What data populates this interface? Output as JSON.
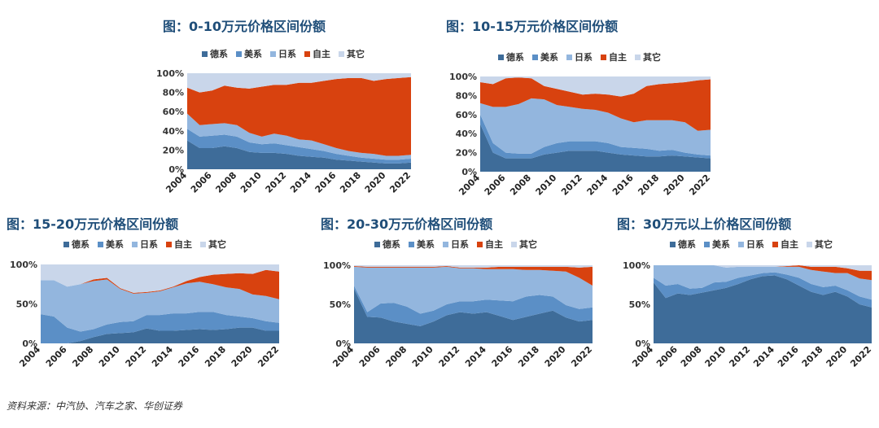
{
  "colors": {
    "德系": "#3e6c99",
    "美系": "#5b8fc6",
    "日系": "#93b6de",
    "自主": "#d8420f",
    "其它": "#c9d6ea",
    "title": "#1f4e79"
  },
  "source_text": "资料来源：中汽协、汽车之家、华创证券",
  "charts": [
    {
      "title": "图：0-10万元价格区间份额",
      "chart_data": {
        "type": "area",
        "x": [
          2004,
          2005,
          2006,
          2007,
          2008,
          2009,
          2010,
          2011,
          2012,
          2013,
          2014,
          2015,
          2016,
          2017,
          2018,
          2019,
          2020,
          2021,
          2022
        ],
        "x_tick_labels": [
          "2004",
          "2006",
          "2008",
          "2010",
          "2012",
          "2014",
          "2016",
          "2018",
          "2020",
          "2022"
        ],
        "y_tick_labels": [
          "0%",
          "20%",
          "40%",
          "60%",
          "80%",
          "100%"
        ],
        "ylim": [
          0,
          100
        ],
        "series": [
          {
            "name": "德系",
            "values": [
              30,
              22,
              22,
              24,
              22,
              18,
              17,
              17,
              16,
              14,
              13,
              12,
              10,
              9,
              8,
              7,
              6,
              6,
              7
            ]
          },
          {
            "name": "美系",
            "values": [
              12,
              12,
              13,
              12,
              12,
              10,
              9,
              10,
              9,
              9,
              8,
              7,
              6,
              5,
              4,
              4,
              4,
              4,
              4
            ]
          },
          {
            "name": "日系",
            "values": [
              16,
              12,
              12,
              12,
              12,
              10,
              8,
              10,
              10,
              8,
              9,
              7,
              6,
              5,
              5,
              5,
              4,
              4,
              4
            ]
          },
          {
            "name": "自主",
            "values": [
              27,
              34,
              35,
              39,
              39,
              46,
              52,
              51,
              53,
              59,
              60,
              66,
              72,
              76,
              78,
              76,
              80,
              81,
              81
            ]
          },
          {
            "name": "其它",
            "values": [
              15,
              20,
              18,
              13,
              15,
              16,
              14,
              12,
              12,
              10,
              10,
              8,
              6,
              5,
              5,
              8,
              6,
              5,
              4
            ]
          }
        ]
      }
    },
    {
      "title": "图：10-15万元价格区间份额",
      "chart_data": {
        "type": "area",
        "x": [
          2004,
          2005,
          2006,
          2007,
          2008,
          2009,
          2010,
          2011,
          2012,
          2013,
          2014,
          2015,
          2016,
          2017,
          2018,
          2019,
          2020,
          2021,
          2022
        ],
        "x_tick_labels": [
          "2004",
          "2006",
          "2008",
          "2010",
          "2012",
          "2014",
          "2016",
          "2018",
          "2020",
          "2022"
        ],
        "y_tick_labels": [
          "0%",
          "20%",
          "40%",
          "60%",
          "80%",
          "100%"
        ],
        "ylim": [
          0,
          100
        ],
        "series": [
          {
            "name": "德系",
            "values": [
              50,
              20,
              14,
              14,
              14,
              18,
              20,
              22,
              22,
              22,
              20,
              18,
              17,
              16,
              16,
              17,
              16,
              15,
              14
            ]
          },
          {
            "name": "美系",
            "values": [
              10,
              10,
              6,
              5,
              5,
              8,
              10,
              10,
              10,
              10,
              10,
              8,
              8,
              8,
              6,
              6,
              4,
              3,
              3
            ]
          },
          {
            "name": "日系",
            "values": [
              12,
              38,
              48,
              52,
              58,
              50,
              40,
              36,
              34,
              33,
              32,
              30,
              27,
              30,
              32,
              31,
              32,
              25,
              27
            ]
          },
          {
            "name": "自主",
            "values": [
              22,
              24,
              30,
              28,
              21,
              14,
              17,
              16,
              15,
              17,
              19,
              23,
              30,
              36,
              38,
              39,
              42,
              53,
              53
            ]
          },
          {
            "name": "其它",
            "values": [
              6,
              8,
              2,
              1,
              2,
              10,
              13,
              16,
              19,
              18,
              19,
              21,
              18,
              10,
              8,
              7,
              6,
              4,
              3
            ]
          }
        ]
      }
    },
    {
      "title": "图：15-20万元价格区间份额",
      "chart_data": {
        "type": "area",
        "x": [
          2004,
          2005,
          2006,
          2007,
          2008,
          2009,
          2010,
          2011,
          2012,
          2013,
          2014,
          2015,
          2016,
          2017,
          2018,
          2019,
          2020,
          2021,
          2022
        ],
        "x_tick_labels": [
          "2004",
          "2006",
          "2008",
          "2010",
          "2012",
          "2014",
          "2016",
          "2018",
          "2020",
          "2022"
        ],
        "y_tick_labels": [
          "0%",
          "50%",
          "100%"
        ],
        "ylim": [
          0,
          100
        ],
        "series": [
          {
            "name": "德系",
            "values": [
              0,
              0,
              0,
              3,
              8,
              12,
              13,
              14,
              19,
              16,
              16,
              17,
              18,
              17,
              18,
              20,
              20,
              16,
              16
            ]
          },
          {
            "name": "美系",
            "values": [
              37,
              34,
              20,
              12,
              10,
              12,
              14,
              14,
              17,
              20,
              22,
              21,
              22,
              23,
              18,
              14,
              12,
              12,
              10
            ]
          },
          {
            "name": "日系",
            "values": [
              43,
              46,
              52,
              60,
              61,
              57,
              42,
              35,
              28,
              30,
              33,
              38,
              38,
              35,
              35,
              35,
              30,
              32,
              30
            ]
          },
          {
            "name": "自主",
            "values": [
              0,
              0,
              0,
              0,
              2,
              2,
              1,
              1,
              1,
              1,
              1,
              3,
              6,
              12,
              17,
              20,
              26,
              33,
              35
            ]
          },
          {
            "name": "其它",
            "values": [
              20,
              20,
              28,
              25,
              19,
              17,
              30,
              36,
              35,
              33,
              28,
              21,
              16,
              13,
              12,
              11,
              12,
              7,
              9
            ]
          }
        ]
      }
    },
    {
      "title": "图：20-30万元价格区间份额",
      "chart_data": {
        "type": "area",
        "x": [
          2004,
          2005,
          2006,
          2007,
          2008,
          2009,
          2010,
          2011,
          2012,
          2013,
          2014,
          2015,
          2016,
          2017,
          2018,
          2019,
          2020,
          2021,
          2022
        ],
        "x_tick_labels": [
          "2004",
          "2006",
          "2008",
          "2010",
          "2012",
          "2014",
          "2016",
          "2018",
          "2020",
          "2022"
        ],
        "y_tick_labels": [
          "0%",
          "50%",
          "100%"
        ],
        "ylim": [
          0,
          100
        ],
        "series": [
          {
            "name": "德系",
            "values": [
              70,
              34,
              33,
              28,
              25,
              22,
              28,
              36,
              40,
              38,
              40,
              35,
              30,
              34,
              38,
              42,
              33,
              28,
              30
            ]
          },
          {
            "name": "美系",
            "values": [
              4,
              6,
              18,
              24,
              22,
              16,
              14,
              14,
              14,
              16,
              16,
              20,
              24,
              26,
              24,
              18,
              16,
              16,
              16
            ]
          },
          {
            "name": "日系",
            "values": [
              24,
              57,
              46,
              45,
              50,
              59,
              55,
              48,
              42,
              42,
              39,
              40,
              41,
              34,
              32,
              33,
              43,
              40,
              28
            ]
          },
          {
            "name": "自主",
            "values": [
              1,
              1,
              1,
              1,
              1,
              1,
              1,
              1,
              1,
              1,
              2,
              3,
              3,
              4,
              4,
              5,
              6,
              13,
              24
            ]
          },
          {
            "name": "其它",
            "values": [
              1,
              2,
              2,
              2,
              2,
              2,
              2,
              1,
              3,
              3,
              3,
              2,
              2,
              2,
              2,
              2,
              2,
              3,
              2
            ]
          }
        ]
      }
    },
    {
      "title": "图：30万元以上价格区间份额",
      "chart_data": {
        "type": "area",
        "x": [
          2004,
          2005,
          2006,
          2007,
          2008,
          2009,
          2010,
          2011,
          2012,
          2013,
          2014,
          2015,
          2016,
          2017,
          2018,
          2019,
          2020,
          2021,
          2022
        ],
        "x_tick_labels": [
          "2004",
          "2006",
          "2008",
          "2010",
          "2012",
          "2014",
          "2016",
          "2018",
          "2020",
          "2022"
        ],
        "y_tick_labels": [
          "0%",
          "50%",
          "100%"
        ],
        "ylim": [
          0,
          100
        ],
        "series": [
          {
            "name": "德系",
            "values": [
              78,
              58,
              64,
              62,
              65,
              68,
              71,
              76,
              82,
              86,
              87,
              82,
              74,
              66,
              62,
              66,
              60,
              50,
              46
            ]
          },
          {
            "name": "美系",
            "values": [
              6,
              16,
              12,
              8,
              6,
              10,
              8,
              8,
              5,
              4,
              4,
              6,
              10,
              10,
              10,
              8,
              8,
              10,
              10
            ]
          },
          {
            "name": "日系",
            "values": [
              16,
              26,
              24,
              30,
              29,
              22,
              18,
              14,
              11,
              8,
              7,
              10,
              14,
              18,
              20,
              16,
              22,
              23,
              25
            ]
          },
          {
            "name": "自主",
            "values": [
              0,
              0,
              0,
              0,
              0,
              0,
              0,
              0,
              0,
              0,
              0,
              1,
              2,
              4,
              6,
              8,
              6,
              10,
              12
            ]
          },
          {
            "name": "其它",
            "values": [
              0,
              0,
              0,
              0,
              0,
              0,
              3,
              2,
              2,
              2,
              2,
              1,
              0,
              2,
              2,
              2,
              4,
              7,
              7
            ]
          }
        ]
      }
    }
  ]
}
